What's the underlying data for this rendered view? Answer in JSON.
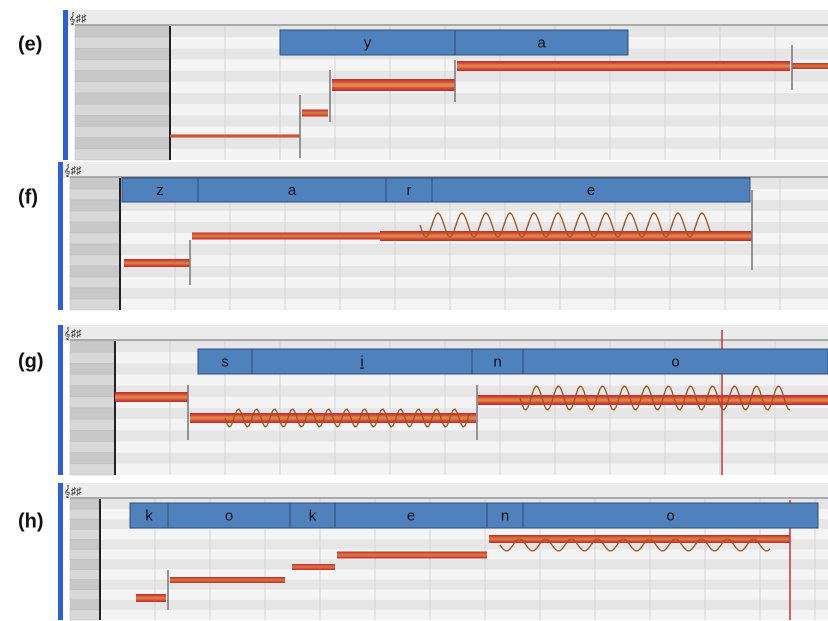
{
  "panels": [
    {
      "label": "(e)",
      "phonemes": [
        "y",
        "a"
      ]
    },
    {
      "label": "(f)",
      "phonemes": [
        "z",
        "a",
        "r",
        "e"
      ]
    },
    {
      "label": "(g)",
      "phonemes": [
        "s",
        "i",
        "n",
        "o"
      ]
    },
    {
      "label": "(h)",
      "phonemes": [
        "k",
        "o",
        "k",
        "e",
        "n",
        "o"
      ]
    }
  ]
}
